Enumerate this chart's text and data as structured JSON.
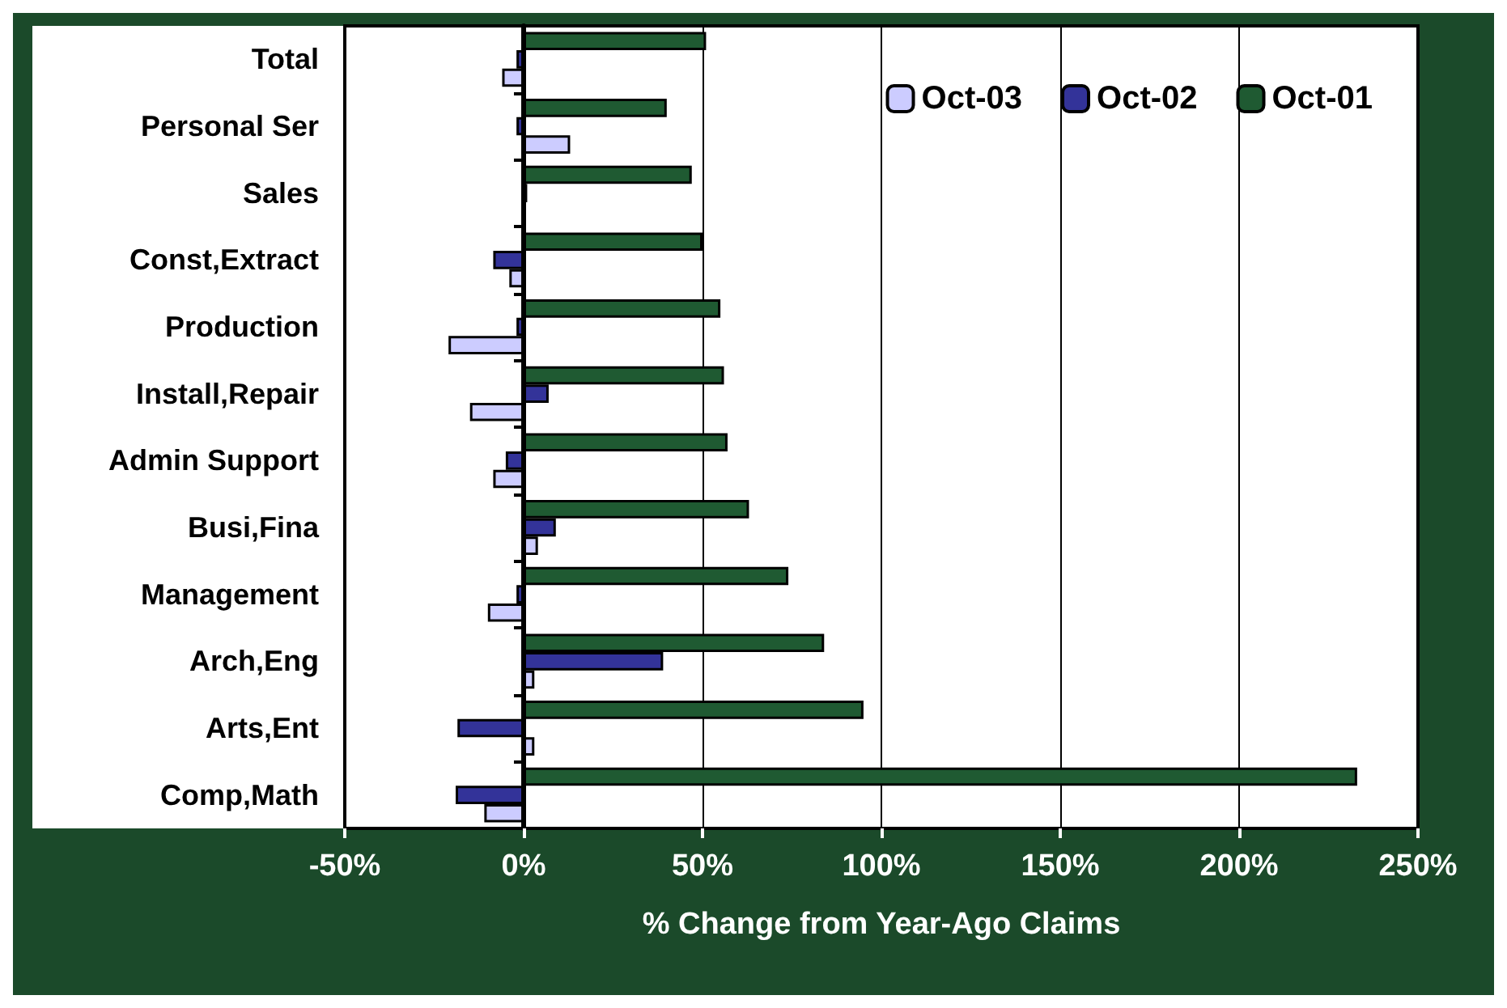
{
  "chart_data": {
    "type": "bar",
    "orientation": "horizontal",
    "xlabel": "% Change from Year-Ago Claims",
    "categories": [
      "Total",
      "Personal Ser",
      "Sales",
      "Const,Extract",
      "Production",
      "Install,Repair",
      "Admin Support",
      "Busi,Fina",
      "Management",
      "Arch,Eng",
      "Arts,Ent",
      "Comp,Math"
    ],
    "series": [
      {
        "name": "Oct-01",
        "color": "#1f5a32",
        "values": [
          51,
          40,
          47,
          50,
          55,
          56,
          57,
          63,
          74,
          84,
          95,
          233
        ]
      },
      {
        "name": "Oct-02",
        "color": "#333399",
        "values": [
          -2,
          -2,
          1,
          -8.5,
          -2,
          7,
          -5,
          9,
          -2,
          39,
          -18.5,
          -19
        ]
      },
      {
        "name": "Oct-03",
        "color": "#ccccff",
        "values": [
          -6,
          13,
          null,
          -4,
          -21,
          -15,
          -8.5,
          4,
          -10,
          3,
          3,
          -11
        ]
      }
    ],
    "xlim": [
      -50,
      250
    ],
    "xticks": [
      {
        "value": -50,
        "label": "-50%"
      },
      {
        "value": 0,
        "label": "0%"
      },
      {
        "value": 50,
        "label": "50%"
      },
      {
        "value": 100,
        "label": "100%"
      },
      {
        "value": 150,
        "label": "150%"
      },
      {
        "value": 200,
        "label": "200%"
      },
      {
        "value": 250,
        "label": "250%"
      }
    ],
    "grid": "x",
    "legend": "top right"
  }
}
